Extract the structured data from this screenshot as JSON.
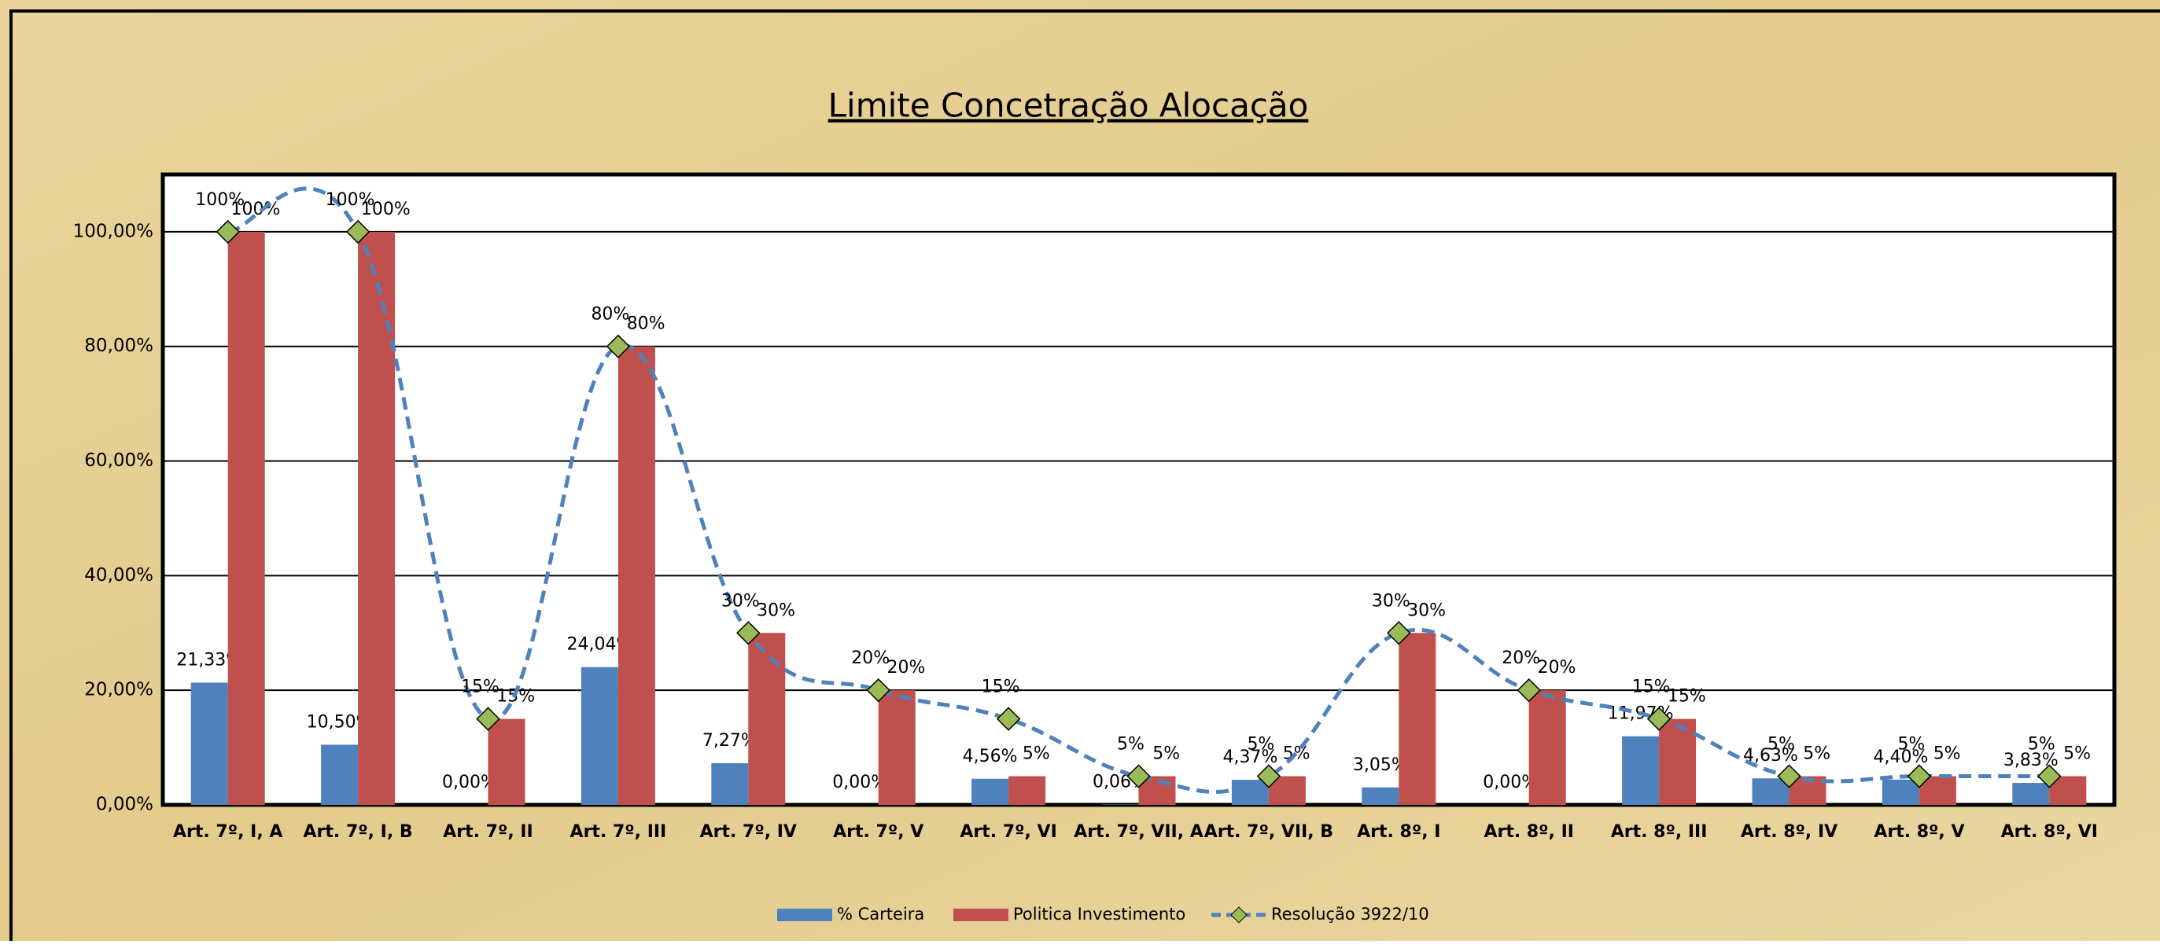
{
  "chart_data": {
    "type": "bar-line",
    "title": "Limite Concetração Alocação",
    "categories": [
      "Art. 7º, I, A",
      "Art. 7º, I, B",
      "Art. 7º, II",
      "Art. 7º, III",
      "Art. 7º, IV",
      "Art. 7º, V",
      "Art. 7º, VI",
      "Art. 7º, VII, A",
      "Art. 7º, VII, B",
      "Art. 8º, I",
      "Art. 8º, II",
      "Art. 8º, III",
      "Art. 8º, IV",
      "Art. 8º, V",
      "Art. 8º, VI"
    ],
    "series": [
      {
        "name": "% Carteira",
        "color": "#4f81bd",
        "kind": "bar",
        "values": [
          21.33,
          10.5,
          0,
          24.04,
          7.27,
          0,
          4.56,
          0.06,
          4.37,
          3.05,
          0,
          11.97,
          4.63,
          4.4,
          3.83
        ],
        "value_labels": [
          "21,33%",
          "10,50%",
          "0,00%",
          "24,04%",
          "7,27%",
          "0,00%",
          "4,56%",
          "0,06%",
          "4,37%",
          "3,05%",
          "0,00%",
          "11,97%",
          "4,63%",
          "4,40%",
          "3,83%"
        ]
      },
      {
        "name": "Politica Investimento",
        "color": "#c0504d",
        "kind": "bar",
        "values": [
          100,
          100,
          15,
          80,
          30,
          20,
          5,
          5,
          5,
          30,
          20,
          15,
          5,
          5,
          5
        ],
        "value_labels": [
          "100%",
          "100%",
          "15%",
          "80%",
          "30%",
          "20%",
          "5%",
          "5%",
          "5%",
          "30%",
          "20%",
          "15%",
          "5%",
          "5%",
          "5%"
        ]
      },
      {
        "name": "Resolução 3922/10",
        "color": "#4f81bd",
        "marker_color": "#9bbb59",
        "kind": "line",
        "values": [
          100,
          100,
          15,
          80,
          30,
          20,
          15,
          5,
          5,
          30,
          20,
          15,
          5,
          5,
          5
        ],
        "value_labels": [
          "100%",
          "100%",
          "15%",
          "80%",
          "30%",
          "20%",
          "15%",
          "5%",
          "5%",
          "30%",
          "20%",
          "15%",
          "5%",
          "5%",
          "5%"
        ]
      }
    ],
    "ylim": [
      0,
      110
    ],
    "yticks": [
      {
        "value": 0,
        "label": "0,00%"
      },
      {
        "value": 20,
        "label": "20,00%"
      },
      {
        "value": 40,
        "label": "40,00%"
      },
      {
        "value": 60,
        "label": "60,00%"
      },
      {
        "value": 80,
        "label": "80,00%"
      },
      {
        "value": 100,
        "label": "100,00%"
      }
    ],
    "grid": true,
    "legend": "bottom"
  }
}
